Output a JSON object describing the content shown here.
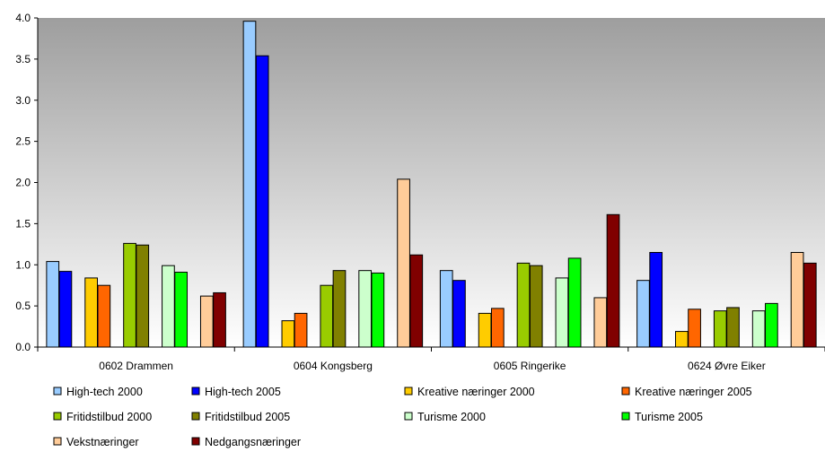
{
  "chart_data": {
    "type": "bar",
    "title": "",
    "xlabel": "",
    "ylabel": "",
    "ylim": [
      0,
      4.0
    ],
    "yticks": [
      "0.0",
      "0.5",
      "1.0",
      "1.5",
      "2.0",
      "2.5",
      "3.0",
      "3.5",
      "4.0"
    ],
    "grid": false,
    "legend_position": "bottom",
    "categories": [
      "0602 Drammen",
      "0604 Kongsberg",
      "0605 Ringerike",
      "0624 Øvre Eiker"
    ],
    "series": [
      {
        "name": "High-tech 2000",
        "color": "#99ccff",
        "values": [
          1.04,
          3.96,
          0.93,
          0.81
        ]
      },
      {
        "name": "High-tech 2005",
        "color": "#0000ff",
        "values": [
          0.92,
          3.54,
          0.81,
          1.15
        ]
      },
      {
        "name": "Kreative næringer 2000",
        "color": "#ffcc00",
        "values": [
          0.84,
          0.32,
          0.41,
          0.19
        ]
      },
      {
        "name": "Kreative næringer 2005",
        "color": "#ff6600",
        "values": [
          0.75,
          0.41,
          0.47,
          0.46
        ]
      },
      {
        "name": "Fritidstilbud 2000",
        "color": "#99cc00",
        "values": [
          1.26,
          0.75,
          1.02,
          0.44
        ]
      },
      {
        "name": "Fritidstilbud 2005",
        "color": "#808000",
        "values": [
          1.24,
          0.93,
          0.99,
          0.48
        ]
      },
      {
        "name": "Turisme 2000",
        "color": "#ccffcc",
        "values": [
          0.99,
          0.93,
          0.84,
          0.44
        ]
      },
      {
        "name": "Turisme 2005",
        "color": "#00ff00",
        "values": [
          0.91,
          0.9,
          1.08,
          0.53
        ]
      },
      {
        "name": "Vekstnæringer",
        "color": "#ffcc99",
        "values": [
          0.62,
          2.04,
          0.6,
          1.15
        ]
      },
      {
        "name": "Nedgangsnæringer",
        "color": "#800000",
        "values": [
          0.66,
          1.12,
          1.61,
          1.02
        ]
      }
    ]
  }
}
